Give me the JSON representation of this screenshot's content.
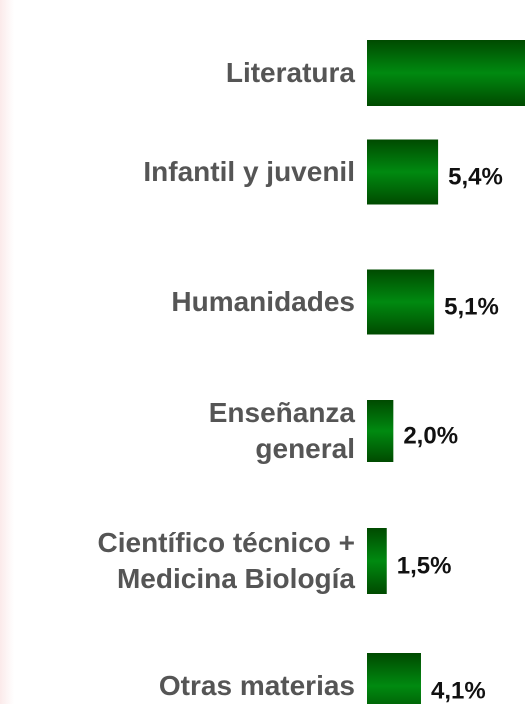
{
  "chart_data": {
    "type": "barh",
    "categories": [
      "Literatura",
      "Infantil y juvenil",
      "Humanidades",
      "Enseñanza\ngeneral",
      "Científico técnico +\nMedicina Biología",
      "Otras materias"
    ],
    "values": [
      12.5,
      5.4,
      5.1,
      2.0,
      1.5,
      4.1
    ],
    "value_labels": [
      null,
      "5,4%",
      "5,1%",
      "2,0%",
      "1,5%",
      "4,1%"
    ],
    "color": "#007a00",
    "xlim": [
      0,
      12
    ]
  }
}
